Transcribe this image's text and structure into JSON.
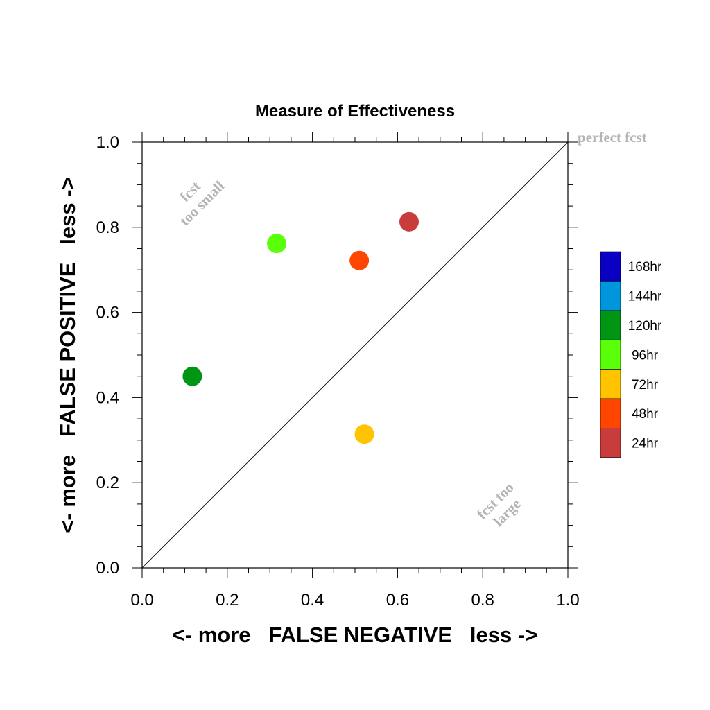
{
  "chart_data": {
    "type": "scatter",
    "title": "Measure of Effectiveness",
    "xlabel": "<- more   FALSE NEGATIVE   less ->",
    "ylabel": "<- more   FALSE POSITIVE   less ->",
    "xlim": [
      0,
      1
    ],
    "ylim": [
      0,
      1
    ],
    "x_ticks": [
      "0.0",
      "0.2",
      "0.4",
      "0.6",
      "0.8",
      "1.0"
    ],
    "y_ticks": [
      "0.0",
      "0.2",
      "0.4",
      "0.6",
      "0.8",
      "1.0"
    ],
    "grid": false,
    "diagonal_line": true,
    "annotations": {
      "perfect": "perfect fcst",
      "too_small": [
        "fcst",
        "too small"
      ],
      "too_large": [
        "fcst too",
        "large"
      ]
    },
    "legend": {
      "placement": "right",
      "entries": [
        {
          "label": "168hr",
          "color": "#0a00c4"
        },
        {
          "label": "144hr",
          "color": "#0096dc"
        },
        {
          "label": "120hr",
          "color": "#009614"
        },
        {
          "label": "96hr",
          "color": "#5aff0a"
        },
        {
          "label": "72hr",
          "color": "#ffc300"
        },
        {
          "label": "48hr",
          "color": "#ff4600"
        },
        {
          "label": "24hr",
          "color": "#c83c3c"
        }
      ]
    },
    "points": [
      {
        "lead": "24hr",
        "x": 0.627,
        "y": 0.813,
        "color": "#c83c3c"
      },
      {
        "lead": "48hr",
        "x": 0.51,
        "y": 0.722,
        "color": "#ff4600"
      },
      {
        "lead": "72hr",
        "x": 0.522,
        "y": 0.314,
        "color": "#ffc300"
      },
      {
        "lead": "96hr",
        "x": 0.316,
        "y": 0.762,
        "color": "#5aff0a"
      },
      {
        "lead": "120hr",
        "x": 0.118,
        "y": 0.45,
        "color": "#009614"
      }
    ]
  }
}
